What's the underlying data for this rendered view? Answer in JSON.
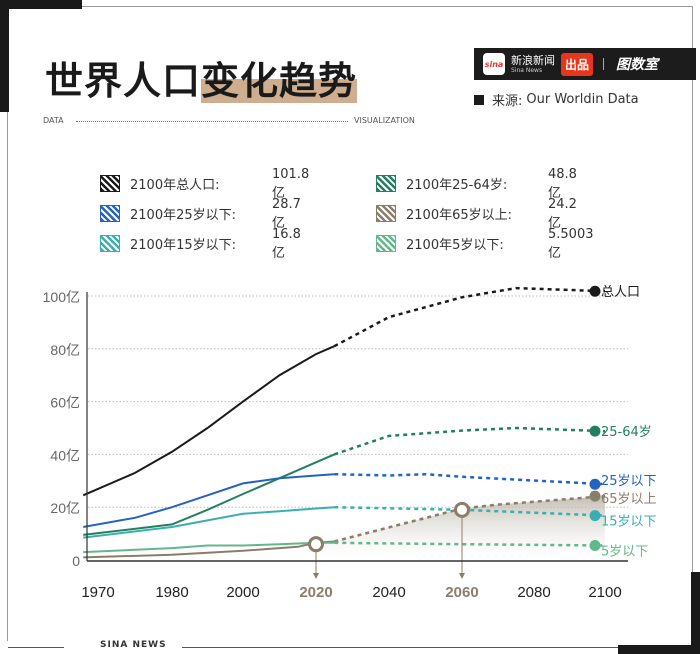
{
  "header": {
    "title_plain": "世界人口",
    "title_highlight": "变化趋势",
    "brand_name_cn": "新浪新闻",
    "brand_name_en": "Sina News",
    "brand_logo_text": "sina",
    "produce_label": "出品",
    "partner_logo": "图数室",
    "source_label": "来源:",
    "source_value": "Our Worldin Data",
    "data_label": "DATA",
    "visualization_label": "VISUALIZATION"
  },
  "legend": [
    {
      "label": "2100年总人口:",
      "value": "101.8亿",
      "color": "#1a1a1a"
    },
    {
      "label": "2100年25-64岁:",
      "value": "48.8亿",
      "color": "#228060"
    },
    {
      "label": "2100年25岁以下:",
      "value": "28.7亿",
      "color": "#2563c0"
    },
    {
      "label": "2100年65岁以上:",
      "value": "24.2亿",
      "color": "#8a7e6a"
    },
    {
      "label": "2100年15岁以下:",
      "value": "16.8亿",
      "color": "#3aaeb0"
    },
    {
      "label": "2100年5岁以下:",
      "value": "5.5003亿",
      "color": "#62b88c"
    }
  ],
  "footer": {
    "label": "SINA NEWS"
  },
  "chart_data": {
    "type": "line",
    "xlabel": "",
    "ylabel": "",
    "ylim": [
      0,
      100
    ],
    "y_ticks": [
      "0",
      "20亿",
      "40亿",
      "60亿",
      "80亿",
      "100亿"
    ],
    "y_tick_values": [
      0,
      20,
      40,
      60,
      80,
      100
    ],
    "x_ticks": [
      "1970",
      "1980",
      "2000",
      "2020",
      "2040",
      "2060",
      "2080",
      "2100"
    ],
    "x_tick_values": [
      1970,
      1980,
      2000,
      2020,
      2040,
      2060,
      2080,
      2100
    ],
    "highlighted_years": [
      "2020",
      "2060"
    ],
    "highlight_color": "#8a7e6a",
    "projection_from": 2025,
    "grid": "horizontal dotted",
    "series": [
      {
        "name": "总人口",
        "color": "#1a1a1a",
        "x": [
          1968,
          1975,
          1980,
          1990,
          2000,
          2010,
          2020,
          2025,
          2040,
          2060,
          2075,
          2100
        ],
        "y": [
          24.5,
          33,
          41,
          50,
          60,
          70,
          78,
          81,
          92,
          99.5,
          103,
          101.8
        ]
      },
      {
        "name": "25-64岁",
        "color": "#228060",
        "x": [
          1968,
          1980,
          1990,
          2000,
          2010,
          2020,
          2025,
          2040,
          2060,
          2075,
          2100
        ],
        "y": [
          9.5,
          13.5,
          19,
          25,
          31,
          37,
          40,
          47,
          49,
          50,
          48.8
        ]
      },
      {
        "name": "25岁以下",
        "color": "#2563c0",
        "x": [
          1968,
          1975,
          1980,
          1990,
          2000,
          2010,
          2020,
          2025,
          2040,
          2050,
          2060,
          2100
        ],
        "y": [
          12.5,
          16,
          20,
          24.5,
          29,
          31,
          32,
          32.5,
          32,
          32.5,
          31.5,
          28.7
        ]
      },
      {
        "name": "65岁以上",
        "color": "#8a7e6a",
        "x": [
          1968,
          1980,
          2000,
          2015,
          2020,
          2025,
          2060,
          2070,
          2100
        ],
        "y": [
          1,
          2,
          3.5,
          5,
          6.5,
          7,
          19.5,
          21,
          24.2
        ]
      },
      {
        "name": "15岁以下",
        "color": "#3aaeb0",
        "x": [
          1968,
          1980,
          1990,
          2000,
          2010,
          2020,
          2025,
          2060,
          2100
        ],
        "y": [
          8.5,
          12.5,
          15,
          17.5,
          18.5,
          19.5,
          20,
          19,
          16.8
        ]
      },
      {
        "name": "5岁以下",
        "color": "#62b88c",
        "x": [
          1968,
          1980,
          1990,
          2000,
          2010,
          2020,
          2025,
          2060,
          2100
        ],
        "y": [
          3,
          4.5,
          5.5,
          5.5,
          6,
          6.5,
          6.5,
          6,
          5.5
        ]
      }
    ],
    "highlight_points": [
      {
        "x": 2020,
        "y": 6
      },
      {
        "x": 2060,
        "y": 19
      }
    ]
  }
}
